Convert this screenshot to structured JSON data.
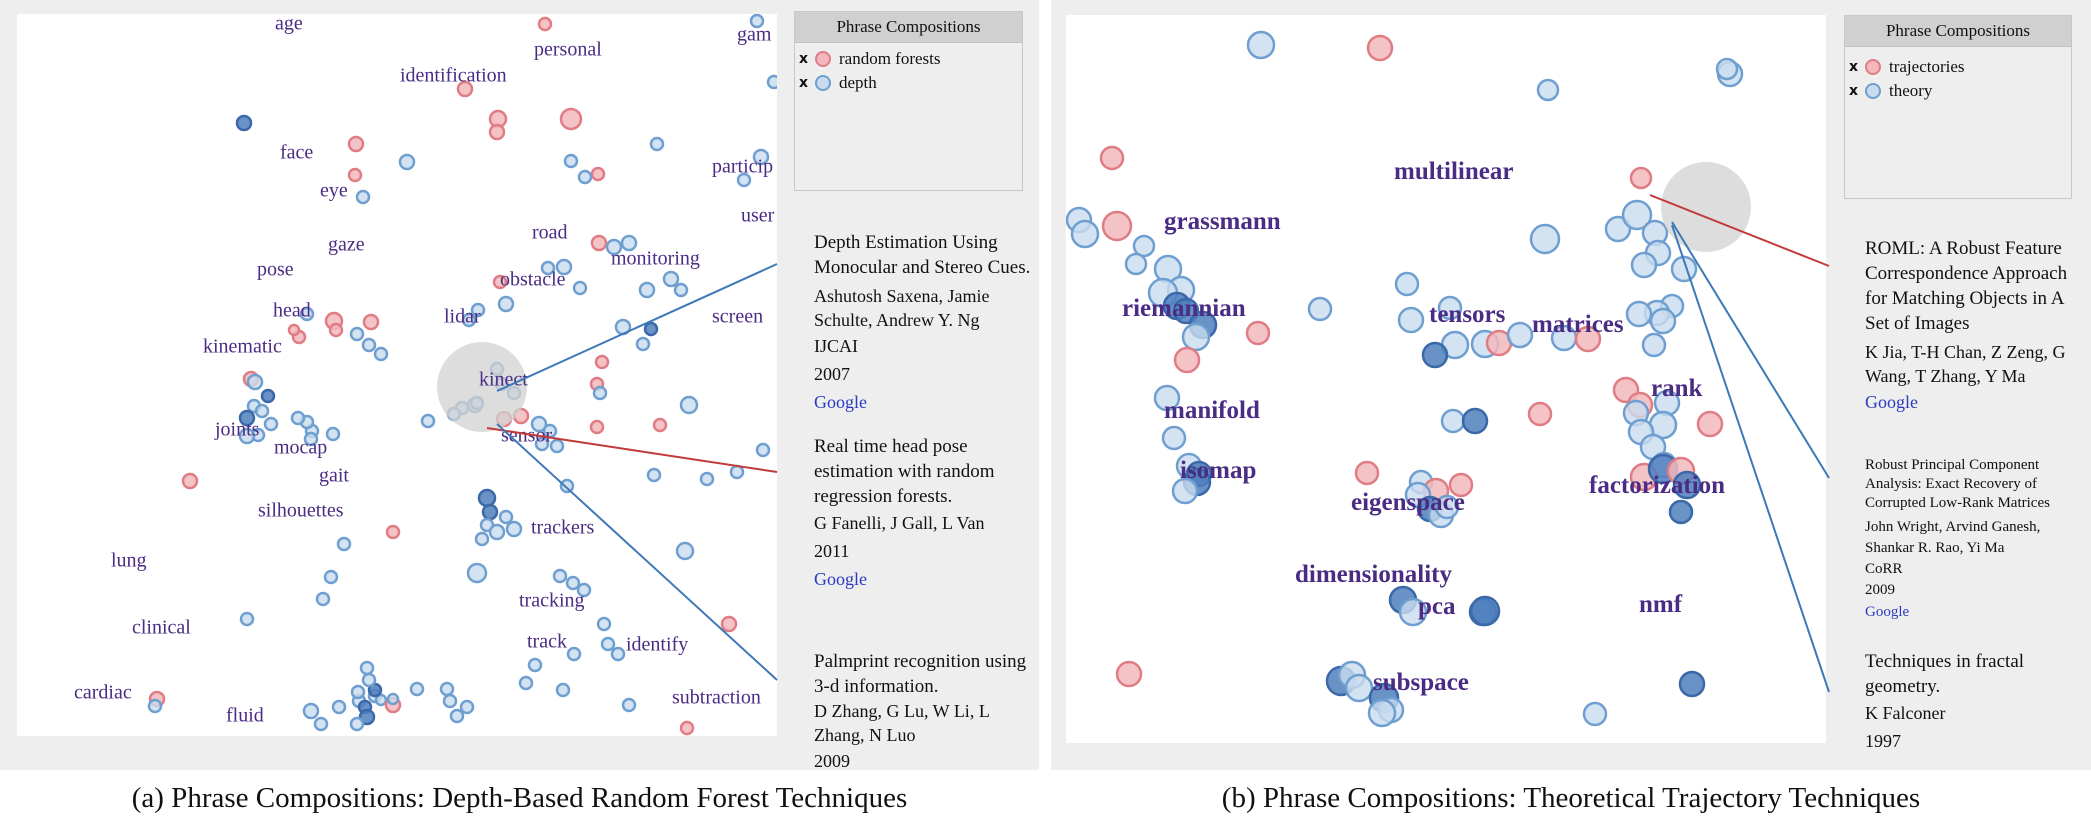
{
  "colors": {
    "red_fill": "#f2b8bc",
    "red_stroke": "#e07c84",
    "blue_fill": "#c9dcef",
    "blue_stroke": "#6f9fd0",
    "dark_blue_fill": "#4f7fbd",
    "dark_blue_stroke": "#3a68a8",
    "word": "#4a2c84",
    "link": "#2a3bbf",
    "leader_blue": "#3d78b8",
    "leader_red": "#c23a3a",
    "lens": "#d2d2d2"
  },
  "panel_a": {
    "legend": {
      "title": "Phrase Compositions",
      "items": [
        {
          "mark": "x",
          "label": "random forests",
          "color": "red"
        },
        {
          "mark": "x",
          "label": "depth",
          "color": "blue"
        }
      ]
    },
    "words": [
      {
        "text": "age"
      },
      {
        "text": "personal"
      },
      {
        "text": "identification"
      },
      {
        "text": "gam"
      },
      {
        "text": "face"
      },
      {
        "text": "eye"
      },
      {
        "text": "particip"
      },
      {
        "text": "user"
      },
      {
        "text": "gaze"
      },
      {
        "text": "road"
      },
      {
        "text": "monitoring"
      },
      {
        "text": "pose"
      },
      {
        "text": "obstacle"
      },
      {
        "text": "head"
      },
      {
        "text": "lidar"
      },
      {
        "text": "screen"
      },
      {
        "text": "kinematic"
      },
      {
        "text": "kinect"
      },
      {
        "text": "joints"
      },
      {
        "text": "sensor"
      },
      {
        "text": "mocap"
      },
      {
        "text": "gait"
      },
      {
        "text": "silhouettes"
      },
      {
        "text": "trackers"
      },
      {
        "text": "lung"
      },
      {
        "text": "tracking"
      },
      {
        "text": "clinical"
      },
      {
        "text": "track"
      },
      {
        "text": "identify"
      },
      {
        "text": "cardiac"
      },
      {
        "text": "subtraction"
      },
      {
        "text": "fluid"
      }
    ],
    "papers": [
      {
        "title": "Depth Estimation Using Monocular and Stereo Cues.",
        "authors": "Ashutosh Saxena, Jamie Schulte, Andrew Y. Ng",
        "venue": "IJCAI",
        "year": "2007",
        "link": "Google"
      },
      {
        "title": "Real time head pose estimation with random regression forests.",
        "authors": "G Fanelli, J Gall, L Van",
        "venue": "",
        "year": "2011",
        "link": "Google"
      },
      {
        "title": "Palmprint recognition using 3-d information.",
        "authors": "D Zhang, G Lu, W Li, L Zhang, N Luo",
        "venue": "",
        "year": "2009",
        "link": ""
      }
    ],
    "caption": "(a)  Phrase Compositions: Depth-Based Random Forest Techniques"
  },
  "panel_b": {
    "legend": {
      "title": "Phrase Compositions",
      "items": [
        {
          "mark": "x",
          "label": "trajectories",
          "color": "red"
        },
        {
          "mark": "x",
          "label": "theory",
          "color": "blue"
        }
      ]
    },
    "words": [
      {
        "text": "multilinear"
      },
      {
        "text": "grassmann"
      },
      {
        "text": "riemannian"
      },
      {
        "text": "tensors"
      },
      {
        "text": "matrices"
      },
      {
        "text": "rank"
      },
      {
        "text": "manifold"
      },
      {
        "text": "isomap"
      },
      {
        "text": "eigenspace"
      },
      {
        "text": "factorization"
      },
      {
        "text": "dimensionality"
      },
      {
        "text": "pca"
      },
      {
        "text": "nmf"
      },
      {
        "text": "subspace"
      }
    ],
    "papers": [
      {
        "title": "ROML: A Robust Feature Correspondence Approach for Matching Objects in A Set of Images",
        "authors": "K Jia, T-H Chan, Z Zeng, G Wang, T Zhang, Y Ma",
        "venue": "",
        "year": "",
        "link": "Google",
        "size": "normal"
      },
      {
        "title": "Robust Principal Component Analysis: Exact Recovery of Corrupted Low-Rank Matrices",
        "authors": "John Wright, Arvind Ganesh, Shankar R. Rao, Yi Ma",
        "venue": "CoRR",
        "year": "2009",
        "link": "Google",
        "size": "small"
      },
      {
        "title": "Techniques in fractal geometry.",
        "authors": "K Falconer",
        "venue": "",
        "year": "1997",
        "link": "",
        "size": "normal"
      }
    ],
    "caption": "(b)  Phrase Compositions: Theoretical Trajectory Techniques"
  }
}
